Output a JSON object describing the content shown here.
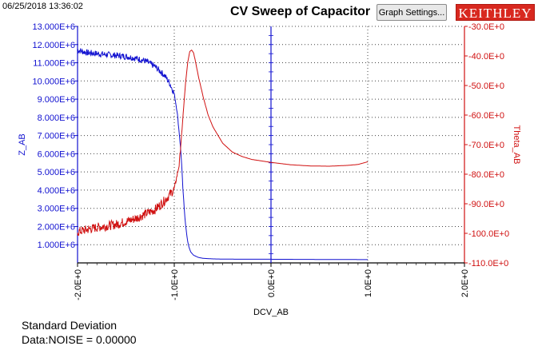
{
  "header": {
    "timestamp": "06/25/2018 13:36:02",
    "title": "CV Sweep of Capacitor",
    "settings_label": "Graph Settings...",
    "brand": "KEITHLEY"
  },
  "stats": {
    "line1": "Standard Deviation",
    "line2": "Data:NOISE = 0.00000"
  },
  "colors": {
    "z_series": "#1010d0",
    "theta_series": "#d01010",
    "left_axis": "#1010d0",
    "right_axis": "#d01010",
    "brand_bg": "#d8281f"
  },
  "chart_data": {
    "type": "line",
    "xlabel": "DCV_AB",
    "ylabel_left": "Z_AB",
    "ylabel_right": "Theta_AB",
    "xlim": [
      -2.0,
      2.0
    ],
    "ylim_left": [
      0,
      13000000.0
    ],
    "ylim_right": [
      -110,
      -30
    ],
    "x_ticks": [
      "-2.0E+0",
      "-1.0E+0",
      "0.0E+0",
      "1.0E+0",
      "2.0E+0"
    ],
    "y_left_ticks": [
      "1.000E+6",
      "2.000E+6",
      "3.000E+6",
      "4.000E+6",
      "5.000E+6",
      "6.000E+6",
      "7.000E+6",
      "8.000E+6",
      "9.000E+6",
      "10.000E+6",
      "11.000E+6",
      "12.000E+6",
      "13.000E+6"
    ],
    "y_right_ticks": [
      "-110.0E+0",
      "-100.0E+0",
      "-90.0E+0",
      "-80.0E+0",
      "-70.0E+0",
      "-60.0E+0",
      "-50.0E+0",
      "-40.0E+0",
      "-30.0E+0"
    ],
    "grid": true,
    "series": [
      {
        "name": "Z_AB",
        "axis": "left",
        "x": [
          -2.0,
          -1.9,
          -1.8,
          -1.7,
          -1.6,
          -1.5,
          -1.4,
          -1.3,
          -1.2,
          -1.1,
          -1.05,
          -1.0,
          -0.97,
          -0.95,
          -0.93,
          -0.92,
          -0.91,
          -0.9,
          -0.89,
          -0.88,
          -0.87,
          -0.86,
          -0.85,
          -0.83,
          -0.8,
          -0.75,
          -0.7,
          -0.6,
          -0.5,
          -0.3,
          0.0,
          0.5,
          1.0
        ],
        "values": [
          11700000.0,
          11550000.0,
          11500000.0,
          11450000.0,
          11400000.0,
          11350000.0,
          11250000.0,
          11100000.0,
          10800000.0,
          10300000.0,
          9900000.0,
          9300000.0,
          8300000.0,
          7200000.0,
          6000000.0,
          5000000.0,
          4000000.0,
          3200000.0,
          2500000.0,
          1950000.0,
          1500000.0,
          1150000.0,
          900000.0,
          600000.0,
          420000.0,
          300000.0,
          250000.0,
          220000.0,
          210000.0,
          200000.0,
          200000.0,
          190000.0,
          180000.0
        ]
      },
      {
        "name": "Theta_AB",
        "axis": "right",
        "x": [
          -2.0,
          -1.8,
          -1.6,
          -1.4,
          -1.2,
          -1.1,
          -1.0,
          -0.95,
          -0.92,
          -0.9,
          -0.88,
          -0.86,
          -0.84,
          -0.82,
          -0.8,
          -0.78,
          -0.75,
          -0.7,
          -0.65,
          -0.6,
          -0.5,
          -0.4,
          -0.3,
          -0.2,
          -0.1,
          0.0,
          0.2,
          0.4,
          0.6,
          0.8,
          0.9,
          1.0
        ],
        "values": [
          -99.5,
          -98.0,
          -97.0,
          -95.0,
          -92.0,
          -89.0,
          -85.0,
          -77.0,
          -65.0,
          -56.0,
          -48.0,
          -42.0,
          -38.5,
          -38.0,
          -39.0,
          -42.0,
          -47.0,
          -54.0,
          -60.0,
          -64.0,
          -69.5,
          -72.5,
          -74.0,
          -75.0,
          -75.5,
          -76.0,
          -76.8,
          -77.2,
          -77.3,
          -77.0,
          -76.7,
          -75.8
        ]
      }
    ]
  }
}
